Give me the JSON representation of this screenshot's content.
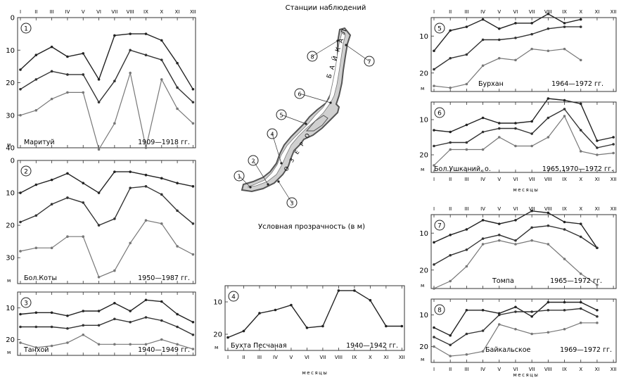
{
  "header": {
    "title": "Станции наблюдений",
    "subtitle": "Условная прозрачность (в м)",
    "lake_name": "Б А Й К А Л",
    "unit": "м"
  },
  "months": [
    "I",
    "II",
    "III",
    "IV",
    "V",
    "VI",
    "VII",
    "VIII",
    "IX",
    "X",
    "XI",
    "XII"
  ],
  "xlabel": "месяцы",
  "map": {
    "markers": [
      "1",
      "2",
      "3",
      "4",
      "5",
      "6",
      "7",
      "8"
    ]
  },
  "chart_data": [
    {
      "type": "line",
      "id": 1,
      "badge": "1",
      "station": "Маритуй",
      "years": "1909—1918 гг.",
      "ylim": [
        0,
        40
      ],
      "yticks": [
        0,
        10,
        20,
        30,
        40
      ],
      "series": [
        {
          "values": [
            16,
            11.5,
            9,
            12,
            11,
            19,
            5.5,
            5,
            5,
            7,
            14,
            22
          ]
        },
        {
          "values": [
            22,
            19,
            16.5,
            17.5,
            17.5,
            26,
            19.5,
            10,
            11.5,
            13,
            21.5,
            26
          ]
        },
        {
          "values": [
            30,
            28.5,
            25,
            23,
            23,
            40.5,
            32.5,
            17,
            40,
            19,
            28,
            32.5
          ]
        }
      ]
    },
    {
      "type": "line",
      "id": 2,
      "badge": "2",
      "station": "Бол.Коты",
      "years": "1950—1987 гг.",
      "ylim": [
        0,
        38
      ],
      "yticks": [
        0,
        10,
        20,
        30
      ],
      "series": [
        {
          "values": [
            10,
            7.5,
            6,
            4,
            7,
            10,
            3.5,
            3.5,
            4.5,
            5.5,
            7,
            8
          ]
        },
        {
          "values": [
            19,
            17,
            13.5,
            11.5,
            13,
            20,
            18,
            8.5,
            8,
            10.5,
            15.5,
            19.5
          ]
        },
        {
          "values": [
            28,
            27,
            27,
            23.5,
            23.5,
            36,
            34,
            25.5,
            18.5,
            19.5,
            26.5,
            29
          ]
        }
      ]
    },
    {
      "type": "line",
      "id": 3,
      "badge": "3",
      "station": "Танхой",
      "years": "1940—1949 гг.",
      "ylim": [
        5,
        25
      ],
      "yticks": [
        10,
        20
      ],
      "series": [
        {
          "values": [
            12,
            11.5,
            11.5,
            12.5,
            11,
            11,
            8.5,
            11,
            7.5,
            8,
            12,
            14.5
          ]
        },
        {
          "values": [
            16,
            16,
            16,
            16.5,
            15.5,
            15.5,
            13.5,
            14.5,
            13,
            14,
            16,
            18.5
          ]
        },
        {
          "values": [
            21,
            22.5,
            22,
            21,
            18.5,
            21.5,
            21.5,
            21.5,
            21.5,
            20,
            21.5,
            23
          ]
        }
      ]
    },
    {
      "type": "line",
      "id": 4,
      "badge": "4",
      "station": "Бухта Песчаная",
      "years": "1940—1942 гг.",
      "ylim": [
        5,
        25
      ],
      "yticks": [
        10,
        20
      ],
      "xlabel": "месяцы",
      "series": [
        {
          "values": [
            21,
            19,
            13.5,
            12.5,
            11,
            18,
            17.5,
            6.5,
            6.5,
            9.5,
            17.5,
            17.5
          ]
        }
      ]
    },
    {
      "type": "line",
      "id": 5,
      "badge": "5",
      "station": "Бурхан",
      "years": "1964—1972 гг.",
      "ylim": [
        5,
        25
      ],
      "yticks": [
        10,
        20
      ],
      "months_count": 10,
      "series": [
        {
          "values": [
            14,
            8.5,
            7.5,
            5.5,
            8,
            6.5,
            6.5,
            4,
            6.5,
            5.5
          ]
        },
        {
          "values": [
            19,
            16,
            15,
            11,
            11,
            10.5,
            9.5,
            8,
            7.5,
            7.5
          ]
        },
        {
          "values": [
            23.5,
            24,
            23,
            18,
            16,
            16.5,
            13.5,
            14,
            13.5,
            16.5
          ]
        }
      ]
    },
    {
      "type": "line",
      "id": 6,
      "badge": "6",
      "station": "Бол.Ушканий, о.",
      "years": "1965,1970—1972 гг.",
      "ylim": [
        5,
        25
      ],
      "yticks": [
        10,
        20
      ],
      "xlabel": "месяцы",
      "series": [
        {
          "values": [
            13,
            13.5,
            11.5,
            9.5,
            11,
            11,
            10.5,
            4,
            4.5,
            5.5,
            16,
            15
          ]
        },
        {
          "values": [
            17.5,
            16.5,
            16.5,
            13.5,
            12.5,
            12.5,
            14,
            9.5,
            7,
            13,
            18,
            17
          ]
        },
        {
          "values": [
            23,
            18.5,
            18.5,
            18.5,
            15,
            17.5,
            17.5,
            15,
            9,
            19,
            20,
            19.5
          ]
        }
      ]
    },
    {
      "type": "line",
      "id": 7,
      "badge": "7",
      "station": "Томпа",
      "years": "1965—1972 гг.",
      "ylim": [
        5,
        25
      ],
      "yticks": [
        10,
        20
      ],
      "series": [
        {
          "values": [
            12.5,
            10.5,
            9,
            6.5,
            7.5,
            6.5,
            4,
            4.5,
            7,
            7.5,
            14
          ]
        },
        {
          "values": [
            18.5,
            16,
            14.5,
            11.5,
            10.5,
            12,
            8.5,
            8,
            9,
            11,
            14
          ]
        },
        {
          "values": [
            25,
            23,
            19,
            13,
            12,
            13,
            12,
            13,
            17,
            21,
            24
          ]
        }
      ]
    },
    {
      "type": "line",
      "id": 8,
      "badge": "8",
      "station": "Байкальское",
      "years": "1969—1972 гг.",
      "ylim": [
        5,
        25
      ],
      "yticks": [
        10,
        20
      ],
      "xlabel": "месяцы",
      "series": [
        {
          "values": [
            14,
            16.5,
            8.5,
            8.5,
            9.5,
            7.5,
            10.5,
            6,
            6,
            6,
            8.5
          ]
        },
        {
          "values": [
            17,
            19.5,
            16,
            15,
            10,
            9,
            9,
            8.5,
            8.5,
            8,
            10.5
          ]
        },
        {
          "values": [
            20,
            23,
            22.5,
            21.5,
            13,
            14.5,
            16,
            15.5,
            14.5,
            12.5,
            12.5
          ]
        }
      ]
    }
  ]
}
